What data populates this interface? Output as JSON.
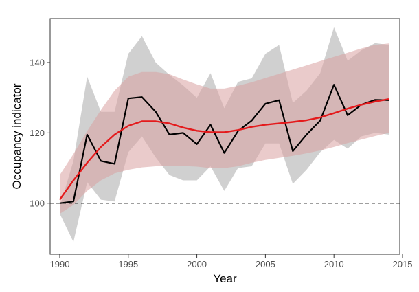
{
  "chart_data": {
    "type": "line",
    "xlabel": "Year",
    "ylabel": "Occupancy indicator",
    "xlim": [
      1989.3,
      2014.8
    ],
    "ylim": [
      85.5,
      152.5
    ],
    "xticks": [
      1990,
      1995,
      2000,
      2005,
      2010,
      2015
    ],
    "yticks": [
      100,
      120,
      140
    ],
    "reference_line": {
      "y": 100,
      "style": "dashed"
    },
    "grid": false,
    "x": [
      1990,
      1991,
      1992,
      1993,
      1994,
      1995,
      1996,
      1997,
      1998,
      1999,
      2000,
      2001,
      2002,
      2003,
      2004,
      2005,
      2006,
      2007,
      2008,
      2009,
      2010,
      2011,
      2012,
      2013,
      2014
    ],
    "series": [
      {
        "key": "annual",
        "color": "#000000",
        "values": [
          100,
          100.5,
          119.5,
          112,
          111.2,
          129.8,
          130.2,
          126,
          119.5,
          120,
          116.8,
          122.3,
          114.3,
          120.5,
          123.5,
          128.3,
          129.3,
          114.8,
          119.5,
          123.5,
          133.7,
          125,
          128,
          129.4,
          129.3
        ],
        "band_color": "#c8c8c8",
        "band_lower": [
          97,
          89,
          106,
          101,
          100.5,
          114.5,
          119,
          113,
          108,
          106.5,
          106.5,
          110.5,
          103.5,
          110,
          110.5,
          117,
          117,
          105.5,
          109.5,
          114.5,
          118,
          115.5,
          119,
          120,
          119.5
        ],
        "band_upper": [
          99,
          112,
          136,
          126,
          126,
          142.5,
          147.5,
          140,
          136.5,
          133.5,
          130,
          137,
          127,
          134.5,
          135.5,
          142.5,
          145,
          128.5,
          132,
          137,
          150,
          140.5,
          143.5,
          145.5,
          145
        ]
      },
      {
        "key": "smoothed",
        "color": "#e41a1c",
        "values": [
          101,
          106.5,
          111.5,
          116,
          119.5,
          122,
          123.3,
          123.3,
          122.7,
          121.5,
          120.6,
          120.2,
          120.2,
          120.8,
          121.7,
          122.3,
          122.7,
          123.1,
          123.6,
          124.4,
          125.6,
          126.9,
          128,
          128.9,
          129.6
        ],
        "band_color": "#d9a0a0",
        "band_lower": [
          97,
          99.5,
          103.5,
          106.5,
          108.5,
          109.5,
          110.2,
          110.5,
          110.6,
          110.6,
          110.4,
          110,
          110,
          110.5,
          111.5,
          112.3,
          112.9,
          113.5,
          114.2,
          115,
          116,
          117.1,
          118.1,
          119.1,
          120
        ],
        "band_upper": [
          108,
          114,
          120.5,
          126.5,
          132,
          136,
          137.3,
          137.3,
          136.7,
          135.2,
          133.8,
          132.6,
          132.6,
          133.4,
          134.4,
          135.6,
          136.8,
          138,
          139.2,
          140.4,
          141.6,
          142.8,
          144,
          145,
          145.4
        ]
      }
    ]
  }
}
